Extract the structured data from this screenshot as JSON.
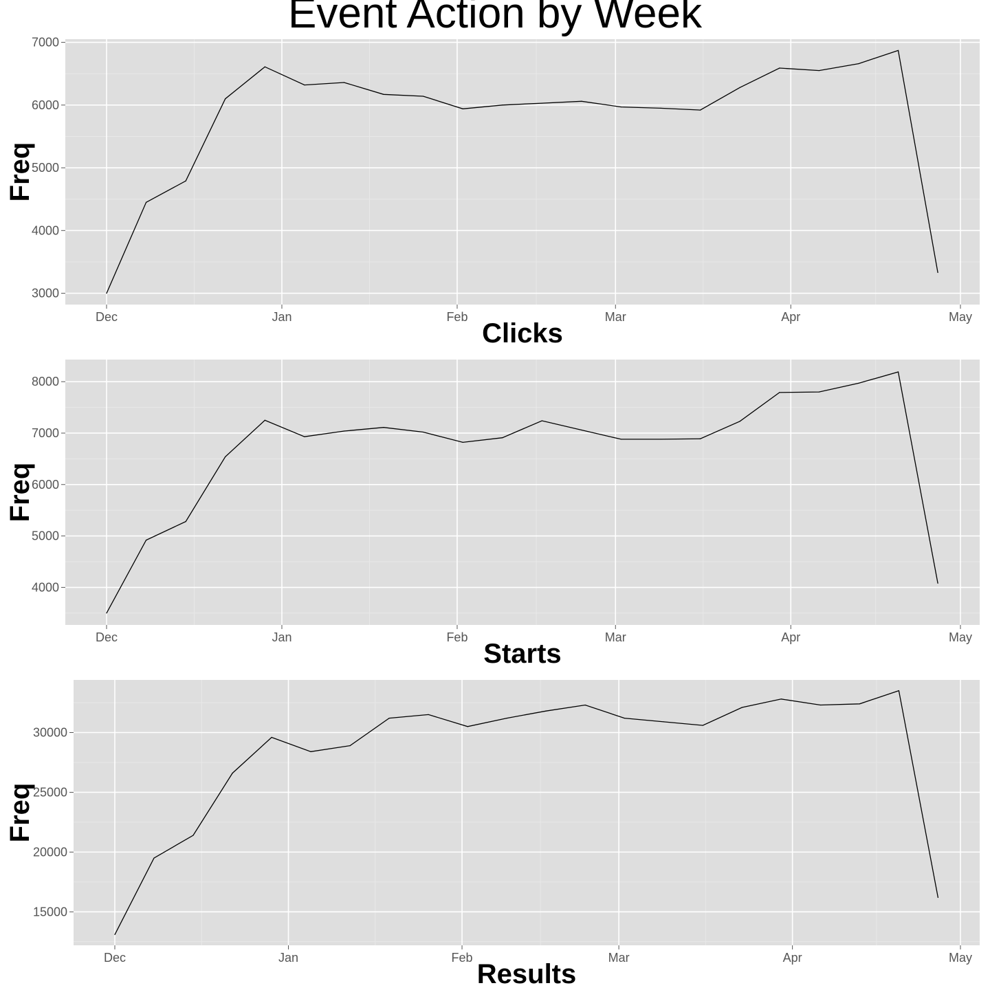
{
  "title": "Event Action by Week",
  "colors": {
    "panel_bg": "#dedede",
    "grid_major": "#ffffff",
    "grid_minor": "#e8e8e8",
    "line": "#000000",
    "tick_text": "#555555"
  },
  "chart_data": [
    {
      "type": "line",
      "xlabel": "Clicks",
      "ylabel": "Freq",
      "x_ticks": [
        "Dec",
        "Jan",
        "Feb",
        "Mar",
        "Apr",
        "May"
      ],
      "y_ticks": [
        3000,
        4000,
        5000,
        6000,
        7000
      ],
      "ylim": [
        2820,
        7050
      ],
      "grid": true,
      "series": [
        {
          "x": [
            "2013-12-01",
            "2013-12-08",
            "2013-12-15",
            "2013-12-22",
            "2013-12-29",
            "2014-01-05",
            "2014-01-12",
            "2014-01-19",
            "2014-01-26",
            "2014-02-02",
            "2014-02-09",
            "2014-02-16",
            "2014-02-23",
            "2014-03-02",
            "2014-03-09",
            "2014-03-16",
            "2014-03-23",
            "2014-03-30",
            "2014-04-06",
            "2014-04-13",
            "2014-04-20",
            "2014-04-27"
          ],
          "y": [
            3000,
            4450,
            4790,
            6100,
            6610,
            6320,
            6360,
            6170,
            6140,
            5940,
            6000,
            6030,
            6060,
            5970,
            5950,
            5920,
            6280,
            6590,
            6550,
            6660,
            6870,
            3330
          ]
        }
      ]
    },
    {
      "type": "line",
      "xlabel": "Starts",
      "ylabel": "Freq",
      "x_ticks": [
        "Dec",
        "Jan",
        "Feb",
        "Mar",
        "Apr",
        "May"
      ],
      "y_ticks": [
        4000,
        5000,
        6000,
        7000,
        8000
      ],
      "ylim": [
        3270,
        8430
      ],
      "grid": true,
      "series": [
        {
          "x": [
            "2013-12-01",
            "2013-12-08",
            "2013-12-15",
            "2013-12-22",
            "2013-12-29",
            "2014-01-05",
            "2014-01-12",
            "2014-01-19",
            "2014-01-26",
            "2014-02-02",
            "2014-02-09",
            "2014-02-16",
            "2014-02-23",
            "2014-03-02",
            "2014-03-09",
            "2014-03-16",
            "2014-03-23",
            "2014-03-30",
            "2014-04-06",
            "2014-04-13",
            "2014-04-20",
            "2014-04-27"
          ],
          "y": [
            3500,
            4920,
            5280,
            6540,
            7250,
            6930,
            7040,
            7110,
            7020,
            6820,
            6910,
            7240,
            7060,
            6880,
            6880,
            6890,
            7230,
            7790,
            7800,
            7970,
            8190,
            4080
          ]
        }
      ]
    },
    {
      "type": "line",
      "xlabel": "Results",
      "ylabel": "Freq",
      "x_ticks": [
        "Dec",
        "Jan",
        "Feb",
        "Mar",
        "Apr",
        "May"
      ],
      "y_ticks": [
        15000,
        20000,
        25000,
        30000
      ],
      "ylim": [
        12200,
        34400
      ],
      "grid": true,
      "series": [
        {
          "x": [
            "2013-12-01",
            "2013-12-08",
            "2013-12-15",
            "2013-12-22",
            "2013-12-29",
            "2014-01-05",
            "2014-01-12",
            "2014-01-19",
            "2014-01-26",
            "2014-02-02",
            "2014-02-09",
            "2014-02-16",
            "2014-02-23",
            "2014-03-02",
            "2014-03-09",
            "2014-03-16",
            "2014-03-23",
            "2014-03-30",
            "2014-04-06",
            "2014-04-13",
            "2014-04-20",
            "2014-04-27"
          ],
          "y": [
            13100,
            19500,
            21400,
            26600,
            29600,
            28400,
            28900,
            31200,
            31500,
            30500,
            31200,
            31800,
            32300,
            31200,
            30900,
            30600,
            32100,
            32800,
            32300,
            32400,
            33500,
            16200
          ]
        }
      ]
    }
  ]
}
